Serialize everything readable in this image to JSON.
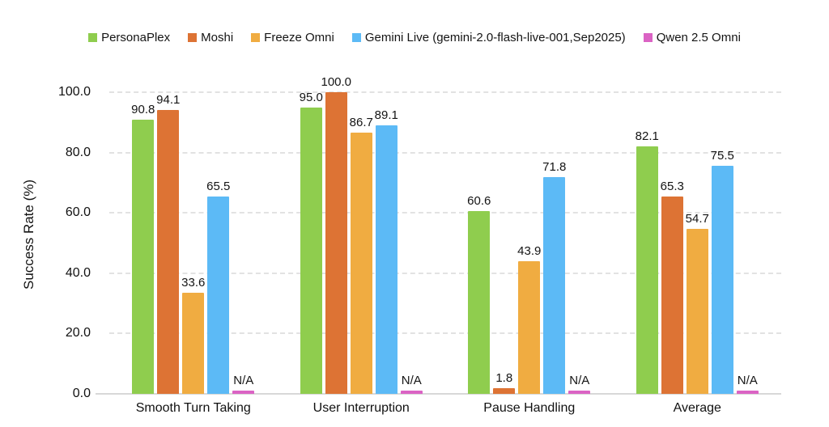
{
  "chart_data": {
    "type": "bar",
    "title": "",
    "xlabel": "",
    "ylabel": "Success Rate (%)",
    "ylim": [
      0,
      100
    ],
    "ytick_values": [
      0,
      20,
      40,
      60,
      80,
      100
    ],
    "ytick_labels": [
      "0.0",
      "20.0",
      "40.0",
      "60.0",
      "80.0",
      "100.0"
    ],
    "grid": "horizontal-dashed",
    "legend_position": "top-center",
    "na_bar_value": 1,
    "na_label": "N/A",
    "categories": [
      "Smooth Turn Taking",
      "User Interruption",
      "Pause Handling",
      "Average"
    ],
    "series": [
      {
        "name": "PersonaPlex",
        "color": "#8fcd4e",
        "values": [
          90.8,
          95.0,
          60.6,
          82.1
        ]
      },
      {
        "name": "Moshi",
        "color": "#dd7334",
        "values": [
          94.1,
          100.0,
          1.8,
          65.3
        ]
      },
      {
        "name": "Freeze Omni",
        "color": "#f0ac41",
        "values": [
          33.6,
          86.7,
          43.9,
          54.7
        ]
      },
      {
        "name": "Gemini Live (gemini-2.0-flash-live-001,Sep2025)",
        "color": "#5cbaf6",
        "values": [
          65.5,
          89.1,
          71.8,
          75.5
        ]
      },
      {
        "name": "Qwen 2.5 Omni",
        "color": "#db63c4",
        "values": [
          null,
          null,
          null,
          null
        ]
      }
    ]
  }
}
